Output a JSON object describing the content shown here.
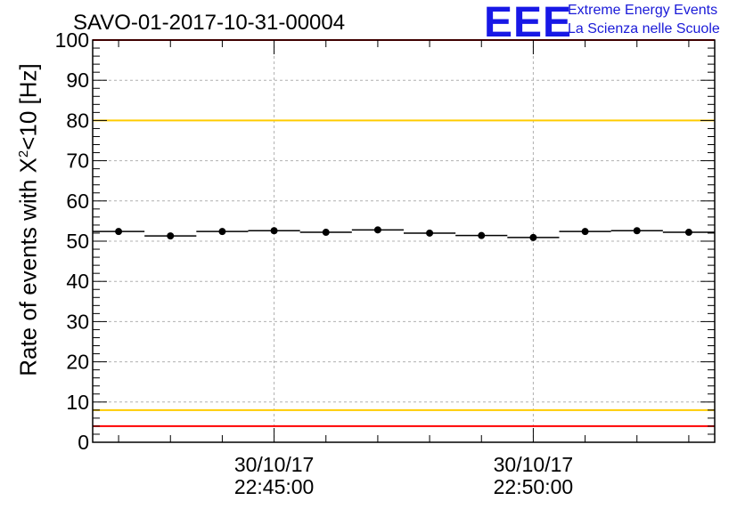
{
  "header": {
    "title": "SAVO-01-2017-10-31-00004",
    "logo_mark": "EEE",
    "logo_line1": "Extreme Energy Events",
    "logo_line2": "La Scienza nelle Scuole"
  },
  "colors": {
    "red_line": "#ff0000",
    "yellow_line": "#ffcc00",
    "grid": "#b0b0b0",
    "data": "#000000"
  },
  "chart_data": {
    "type": "scatter",
    "title": "SAVO-01-2017-10-31-00004",
    "ylabel_prefix": "Rate of events with X",
    "ylabel_sup": "2",
    "ylabel_suffix": "<10 [Hz]",
    "xlabel": "",
    "ylim": [
      0,
      100
    ],
    "yticks": [
      "0",
      "10",
      "20",
      "30",
      "40",
      "50",
      "60",
      "70",
      "80",
      "90",
      "100"
    ],
    "xlim_minutes": [
      -3.5,
      8.5
    ],
    "xticks": [
      {
        "value": 0,
        "date": "30/10/17",
        "time": "22:45:00"
      },
      {
        "value": 5,
        "date": "30/10/17",
        "time": "22:50:00"
      }
    ],
    "grid": true,
    "x_minutes_from_22_45": [
      -3,
      -2,
      -1,
      0,
      1,
      2,
      3,
      4,
      5,
      6,
      7,
      8
    ],
    "values": [
      52.4,
      51.3,
      52.4,
      52.6,
      52.2,
      52.8,
      52.0,
      51.4,
      50.9,
      52.4,
      52.6,
      52.2
    ],
    "bin_width_minutes": 1,
    "reference_lines": [
      {
        "y": 100,
        "color": "red"
      },
      {
        "y": 80,
        "color": "yellow"
      },
      {
        "y": 8,
        "color": "yellow"
      },
      {
        "y": 4,
        "color": "red"
      }
    ]
  }
}
